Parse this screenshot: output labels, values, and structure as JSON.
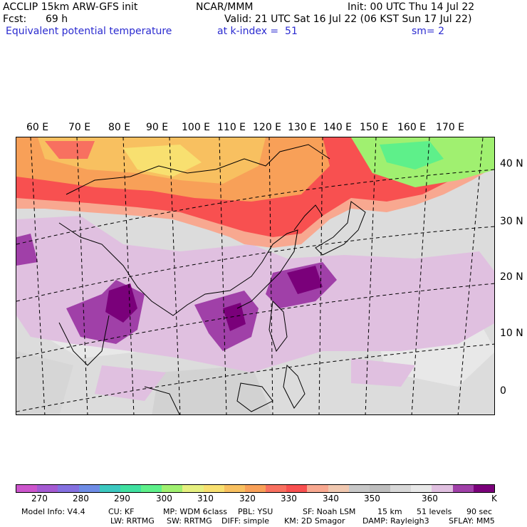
{
  "header": {
    "model": "ACCLIP 15km ARW-GFS init",
    "org": "NCAR/MMM",
    "init": "Init: 00 UTC Thu 14 Jul 22",
    "fcst_label": "Fcst:",
    "fcst_value": "69 h",
    "valid": "Valid: 21 UTC Sat 16 Jul 22 (06 KST Sun 17 Jul 22)",
    "field": "Equivalent potential temperature",
    "level": "at k-index =  51",
    "smooth": "sm= 2"
  },
  "lon_labels": [
    "60 E",
    "70 E",
    "80 E",
    "90 E",
    "100 E",
    "110 E",
    "120 E",
    "130 E",
    "140 E",
    "150 E",
    "160 E",
    "170 E"
  ],
  "lat_labels": [
    "40 N",
    "30 N",
    "20 N",
    "10 N",
    "0"
  ],
  "colorbar": {
    "colors": [
      "#cc55cc",
      "#a45ad2",
      "#8470e0",
      "#6e8ce6",
      "#3cc8c0",
      "#40e0a0",
      "#5ef08a",
      "#a0f070",
      "#e6f080",
      "#f8e070",
      "#f8c060",
      "#f8a058",
      "#f87060",
      "#f85050",
      "#f8a890",
      "#f0c8b0",
      "#c8c8c8",
      "#bebebe",
      "#d8d8d8",
      "#e8e8e8",
      "#e0c0e0",
      "#a040a8",
      "#7a007a"
    ],
    "tick_labels": [
      "270",
      "280",
      "290",
      "300",
      "310",
      "320",
      "330",
      "340",
      "350",
      "360"
    ],
    "units": "K"
  },
  "model_info": {
    "line1": [
      "Model Info: V4.4",
      "CU: KF",
      "MP: WDM 6class",
      "PBL: YSU",
      "SF: Noah LSM",
      "15 km",
      "51 levels",
      "90 sec"
    ],
    "line2": [
      "LW: RRTMG",
      "SW: RRTMG",
      "DIFF: simple",
      "KM: 2D Smagor",
      "DAMP: Rayleigh3",
      "SFLAY: MM5"
    ]
  }
}
